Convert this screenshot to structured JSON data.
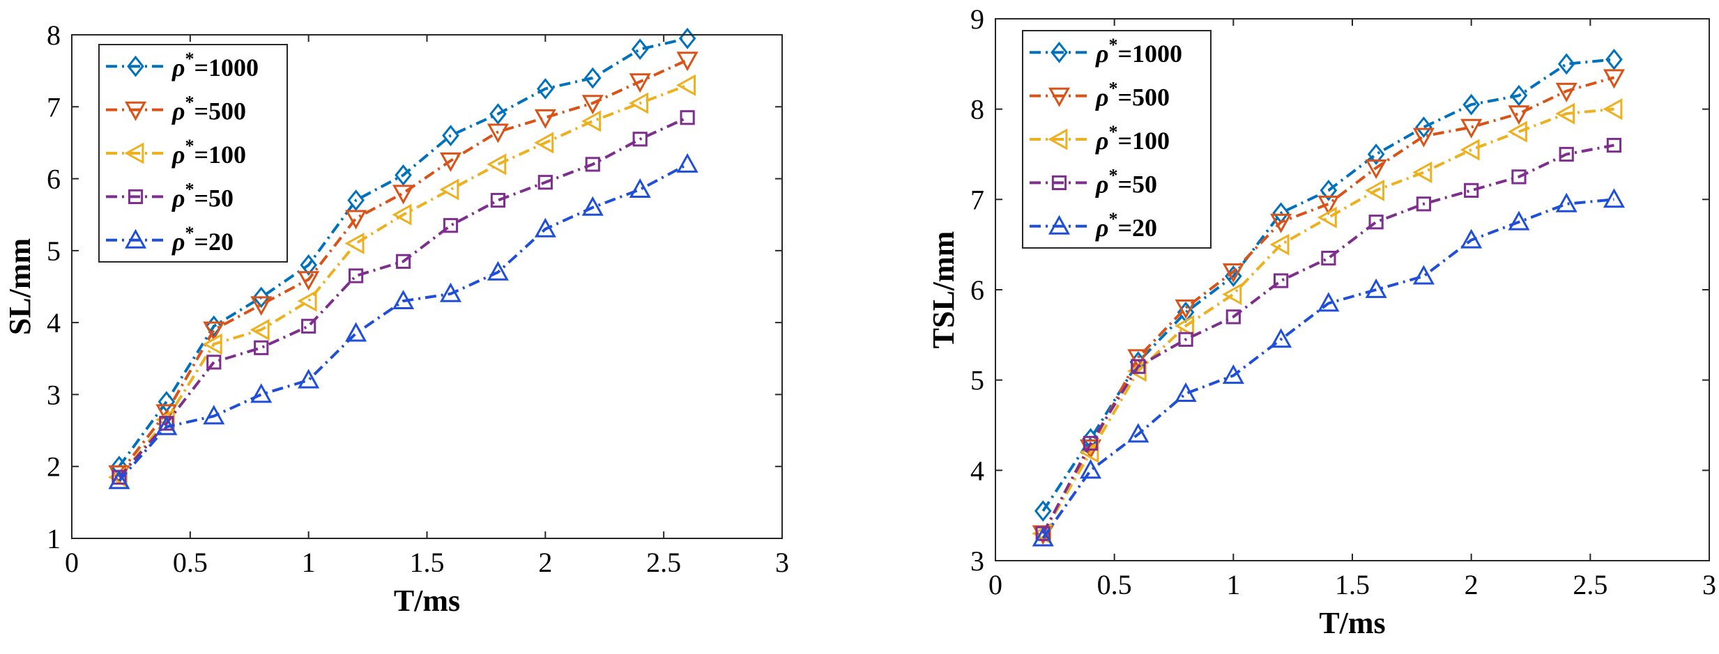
{
  "chart_data": [
    {
      "type": "line",
      "xlabel": "T/ms",
      "ylabel": "SL/mm",
      "xlim": [
        0,
        3
      ],
      "ylim": [
        1,
        8
      ],
      "xticks": [
        0,
        0.5,
        1,
        1.5,
        2,
        2.5,
        3
      ],
      "xtick_labels": [
        "0",
        "0.5",
        "1",
        "1.5",
        "2",
        "2.5",
        "3"
      ],
      "yticks": [
        1,
        2,
        3,
        4,
        5,
        6,
        7,
        8
      ],
      "ytick_labels": [
        "1",
        "2",
        "3",
        "4",
        "5",
        "6",
        "7",
        "8"
      ],
      "grid": false,
      "legend_position": "top-left",
      "x": [
        0.2,
        0.4,
        0.6,
        0.8,
        1.0,
        1.2,
        1.4,
        1.6,
        1.8,
        2.0,
        2.2,
        2.4,
        2.6
      ],
      "series": [
        {
          "name": "ρ*=1000",
          "legend_prefix": "ρ",
          "legend_sup": "*",
          "legend_suffix": "=1000",
          "color": "#0072BD",
          "marker": "diamond",
          "values": [
            2.0,
            2.9,
            3.95,
            4.35,
            4.8,
            5.7,
            6.05,
            6.6,
            6.9,
            7.25,
            7.4,
            7.8,
            7.95
          ]
        },
        {
          "name": "ρ*=500",
          "legend_prefix": "ρ",
          "legend_sup": "*",
          "legend_suffix": "=500",
          "color": "#D95319",
          "marker": "triangle-down",
          "values": [
            1.9,
            2.75,
            3.9,
            4.25,
            4.6,
            5.45,
            5.8,
            6.25,
            6.65,
            6.85,
            7.05,
            7.35,
            7.65
          ]
        },
        {
          "name": "ρ*=100",
          "legend_prefix": "ρ",
          "legend_sup": "*",
          "legend_suffix": "=100",
          "color": "#EDB120",
          "marker": "triangle-left",
          "values": [
            1.85,
            2.65,
            3.7,
            3.9,
            4.3,
            5.1,
            5.5,
            5.85,
            6.2,
            6.5,
            6.8,
            7.05,
            7.3
          ]
        },
        {
          "name": "ρ*=50",
          "legend_prefix": "ρ",
          "legend_sup": "*",
          "legend_suffix": "=50",
          "color": "#7E2F8E",
          "marker": "square",
          "values": [
            1.85,
            2.6,
            3.45,
            3.65,
            3.95,
            4.65,
            4.85,
            5.35,
            5.7,
            5.95,
            6.2,
            6.55,
            6.85
          ]
        },
        {
          "name": "ρ*=20",
          "legend_prefix": "ρ",
          "legend_sup": "*",
          "legend_suffix": "=20",
          "color": "#1F4FD8",
          "marker": "triangle-up",
          "values": [
            1.8,
            2.55,
            2.7,
            3.0,
            3.2,
            3.85,
            4.3,
            4.4,
            4.7,
            5.3,
            5.6,
            5.85,
            6.2
          ]
        }
      ]
    },
    {
      "type": "line",
      "xlabel": "T/ms",
      "ylabel": "TSL/mm",
      "xlim": [
        0,
        3
      ],
      "ylim": [
        3,
        9
      ],
      "xticks": [
        0,
        0.5,
        1,
        1.5,
        2,
        2.5,
        3
      ],
      "xtick_labels": [
        "0",
        "0.5",
        "1",
        "1.5",
        "2",
        "2.5",
        "3"
      ],
      "yticks": [
        3,
        4,
        5,
        6,
        7,
        8,
        9
      ],
      "ytick_labels": [
        "3",
        "4",
        "5",
        "6",
        "7",
        "8",
        "9"
      ],
      "grid": false,
      "legend_position": "top-left",
      "x": [
        0.2,
        0.4,
        0.6,
        0.8,
        1.0,
        1.2,
        1.4,
        1.6,
        1.8,
        2.0,
        2.2,
        2.4,
        2.6
      ],
      "series": [
        {
          "name": "ρ*=1000",
          "legend_prefix": "ρ",
          "legend_sup": "*",
          "legend_suffix": "=1000",
          "color": "#0072BD",
          "marker": "diamond",
          "values": [
            3.55,
            4.35,
            5.2,
            5.75,
            6.15,
            6.85,
            7.1,
            7.5,
            7.8,
            8.05,
            8.15,
            8.5,
            8.55
          ]
        },
        {
          "name": "ρ*=500",
          "legend_prefix": "ρ",
          "legend_sup": "*",
          "legend_suffix": "=500",
          "color": "#D95319",
          "marker": "triangle-down",
          "values": [
            3.3,
            4.25,
            5.25,
            5.8,
            6.2,
            6.75,
            6.95,
            7.35,
            7.7,
            7.8,
            7.95,
            8.2,
            8.35
          ]
        },
        {
          "name": "ρ*=100",
          "legend_prefix": "ρ",
          "legend_sup": "*",
          "legend_suffix": "=100",
          "color": "#EDB120",
          "marker": "triangle-left",
          "values": [
            3.3,
            4.2,
            5.1,
            5.6,
            5.95,
            6.5,
            6.8,
            7.1,
            7.3,
            7.55,
            7.75,
            7.95,
            8.0
          ]
        },
        {
          "name": "ρ*=50",
          "legend_prefix": "ρ",
          "legend_sup": "*",
          "legend_suffix": "=50",
          "color": "#7E2F8E",
          "marker": "square",
          "values": [
            3.3,
            4.3,
            5.15,
            5.45,
            5.7,
            6.1,
            6.35,
            6.75,
            6.95,
            7.1,
            7.25,
            7.5,
            7.6
          ]
        },
        {
          "name": "ρ*=20",
          "legend_prefix": "ρ",
          "legend_sup": "*",
          "legend_suffix": "=20",
          "color": "#1F4FD8",
          "marker": "triangle-up",
          "values": [
            3.25,
            4.0,
            4.4,
            4.85,
            5.05,
            5.45,
            5.85,
            6.0,
            6.15,
            6.55,
            6.75,
            6.95,
            7.0
          ]
        }
      ]
    }
  ]
}
